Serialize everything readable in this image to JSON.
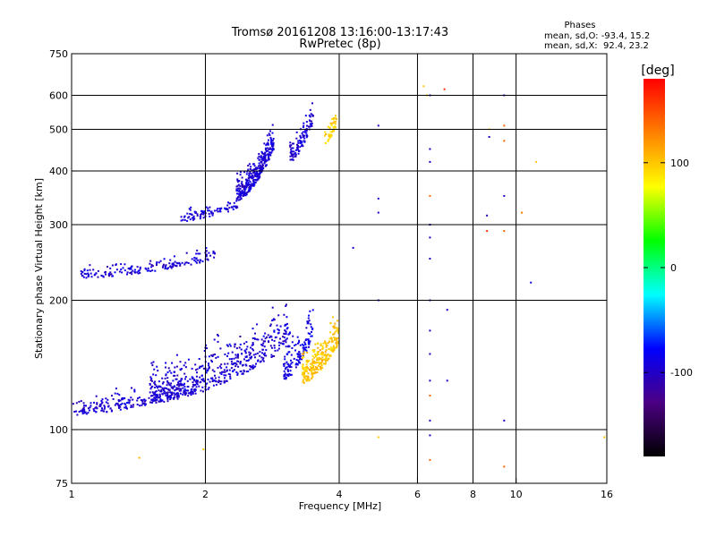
{
  "chart_data": {
    "type": "scatter",
    "title": "Tromsø 20161208 13:16:00-13:17:43",
    "subtitle": "RwPretec (8p)",
    "phase_info": {
      "heading": "Phases",
      "line_o": "mean, sd,O: -93.4, 15.2",
      "line_x": "mean, sd,X:  92.4, 23.2"
    },
    "xlabel": "Frequency [MHz]",
    "ylabel": "Stationary phase Virtual Height [km]",
    "x_scale": "log",
    "y_scale": "log",
    "xlim": [
      1,
      16
    ],
    "ylim": [
      75,
      750
    ],
    "x_ticks": [
      1,
      2,
      4,
      6,
      8,
      10,
      16
    ],
    "y_ticks": [
      75,
      100,
      200,
      300,
      400,
      500,
      600,
      750
    ],
    "x_grid": [
      2,
      4,
      6,
      8,
      10
    ],
    "y_grid": [
      100,
      200,
      300,
      400,
      500,
      600
    ],
    "colorbar": {
      "label": "[deg]",
      "range": [
        -180,
        180
      ],
      "ticks": [
        -100,
        0,
        100
      ],
      "colors": [
        "#000000",
        "#4b0082",
        "#0000ff",
        "#00ffff",
        "#00ff00",
        "#ffff00",
        "#ff8000",
        "#ff0000"
      ]
    },
    "traces": [
      {
        "name": "O",
        "phase": -95,
        "fmin": 1.0,
        "fmax": 1.9,
        "hmin": 108,
        "hmax": 135,
        "spread": 0.06,
        "n": 230
      },
      {
        "name": "O",
        "phase": -95,
        "fmin": 1.5,
        "fmax": 3.1,
        "hmin": 115,
        "hmax": 200,
        "spread": 0.14,
        "n": 520
      },
      {
        "name": "O",
        "phase": -90,
        "fmin": 3.0,
        "fmax": 3.5,
        "hmin": 130,
        "hmax": 200,
        "spread": 0.12,
        "n": 130
      },
      {
        "name": "O",
        "phase": -95,
        "fmin": 1.05,
        "fmax": 2.1,
        "hmin": 225,
        "hmax": 270,
        "spread": 0.04,
        "n": 170
      },
      {
        "name": "O",
        "phase": -95,
        "fmin": 1.75,
        "fmax": 2.4,
        "hmin": 305,
        "hmax": 350,
        "spread": 0.04,
        "n": 90
      },
      {
        "name": "O",
        "phase": -95,
        "fmin": 2.35,
        "fmax": 2.85,
        "hmin": 340,
        "hmax": 560,
        "spread": 0.09,
        "n": 320
      },
      {
        "name": "O",
        "phase": -95,
        "fmin": 3.1,
        "fmax": 3.5,
        "hmin": 420,
        "hmax": 620,
        "spread": 0.07,
        "n": 110
      },
      {
        "name": "X",
        "phase": 100,
        "fmin": 3.3,
        "fmax": 4.0,
        "hmin": 128,
        "hmax": 190,
        "spread": 0.1,
        "n": 260
      },
      {
        "name": "X",
        "phase": 95,
        "fmin": 3.7,
        "fmax": 3.95,
        "hmin": 460,
        "hmax": 560,
        "spread": 0.05,
        "n": 50
      }
    ],
    "sparse_columns": [
      {
        "f": 6.4,
        "heights": [
          85,
          97,
          105,
          120,
          130,
          150,
          170,
          200,
          250,
          280,
          300,
          350,
          420,
          450,
          600
        ]
      },
      {
        "f": 9.4,
        "heights": [
          82,
          105,
          290,
          350,
          470,
          510,
          600
        ]
      }
    ],
    "isolated_points": [
      {
        "f": 1.42,
        "h": 86,
        "phase": 110
      },
      {
        "f": 1.98,
        "h": 90,
        "phase": 100
      },
      {
        "f": 4.9,
        "h": 96,
        "phase": 100
      },
      {
        "f": 4.9,
        "h": 200,
        "phase": -100
      },
      {
        "f": 4.9,
        "h": 320,
        "phase": -100
      },
      {
        "f": 4.9,
        "h": 345,
        "phase": -100
      },
      {
        "f": 4.9,
        "h": 510,
        "phase": -100
      },
      {
        "f": 4.3,
        "h": 265,
        "phase": -100
      },
      {
        "f": 6.2,
        "h": 630,
        "phase": 100
      },
      {
        "f": 6.3,
        "h": 600,
        "phase": 100
      },
      {
        "f": 6.9,
        "h": 620,
        "phase": 160
      },
      {
        "f": 7.0,
        "h": 130,
        "phase": -100
      },
      {
        "f": 7.0,
        "h": 190,
        "phase": -100
      },
      {
        "f": 8.6,
        "h": 290,
        "phase": 160
      },
      {
        "f": 8.6,
        "h": 315,
        "phase": -100
      },
      {
        "f": 8.7,
        "h": 480,
        "phase": -100
      },
      {
        "f": 8.7,
        "h": 500,
        "phase": 100
      },
      {
        "f": 10.3,
        "h": 320,
        "phase": 130
      },
      {
        "f": 10.8,
        "h": 220,
        "phase": -90
      },
      {
        "f": 11.1,
        "h": 420,
        "phase": 100
      },
      {
        "f": 15.8,
        "h": 96,
        "phase": 100
      }
    ]
  }
}
